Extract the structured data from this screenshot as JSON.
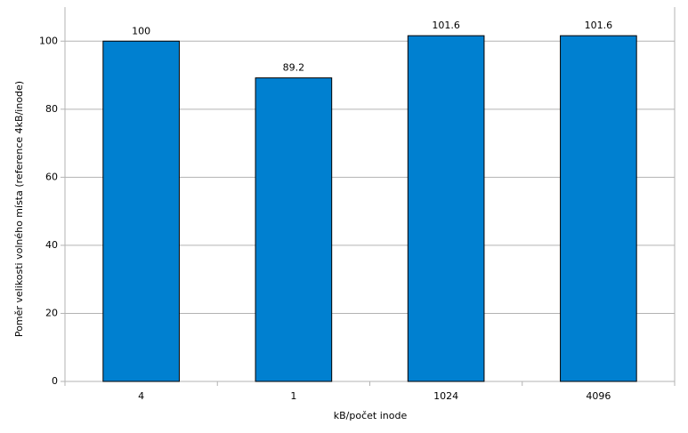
{
  "chart_data": {
    "type": "bar",
    "x_label": "kB/počet inode",
    "y_label": "Poměr velikosti volného místa (reference 4kB/inode)",
    "categories": [
      "4",
      "1",
      "1024",
      "4096"
    ],
    "values": [
      100,
      89.2,
      101.6,
      101.6
    ],
    "color": "#0080d0",
    "ylim": [
      0,
      110
    ],
    "yticks": [
      0,
      20,
      40,
      60,
      80,
      100
    ],
    "grid": true
  }
}
